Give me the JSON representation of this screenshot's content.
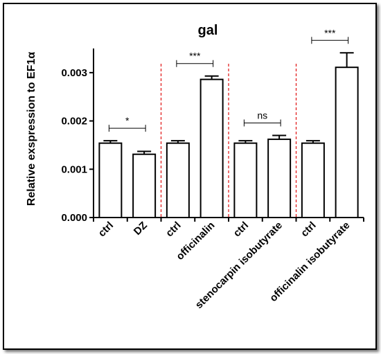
{
  "chart_data": {
    "type": "bar",
    "title": "gal",
    "ylabel": "Relative exspression to EF1α",
    "ylim": [
      0,
      0.0035
    ],
    "yticks": [
      "0.000",
      "0.001",
      "0.002",
      "0.003"
    ],
    "categories": [
      "ctrl",
      "DZ",
      "ctrl",
      "officinalin",
      "ctrl",
      "stenocarpin isobutyrate",
      "ctrl",
      "officinalin isobutyrate"
    ],
    "values": [
      0.00154,
      0.00131,
      0.00154,
      0.00286,
      0.00154,
      0.00162,
      0.00154,
      0.00311
    ],
    "errors": [
      5e-05,
      6e-05,
      5e-05,
      7e-05,
      5e-05,
      8e-05,
      5e-05,
      0.0003
    ],
    "comparisons": [
      {
        "pair": [
          0,
          1
        ],
        "label": "*"
      },
      {
        "pair": [
          2,
          3
        ],
        "label": "***"
      },
      {
        "pair": [
          4,
          5
        ],
        "label": "ns"
      },
      {
        "pair": [
          6,
          7
        ],
        "label": "***"
      }
    ],
    "group_dividers": [
      1.5,
      3.5,
      5.5
    ],
    "colors": {
      "bar_fill": "#ffffff",
      "bar_stroke": "#000000",
      "divider": "#e01010"
    }
  }
}
